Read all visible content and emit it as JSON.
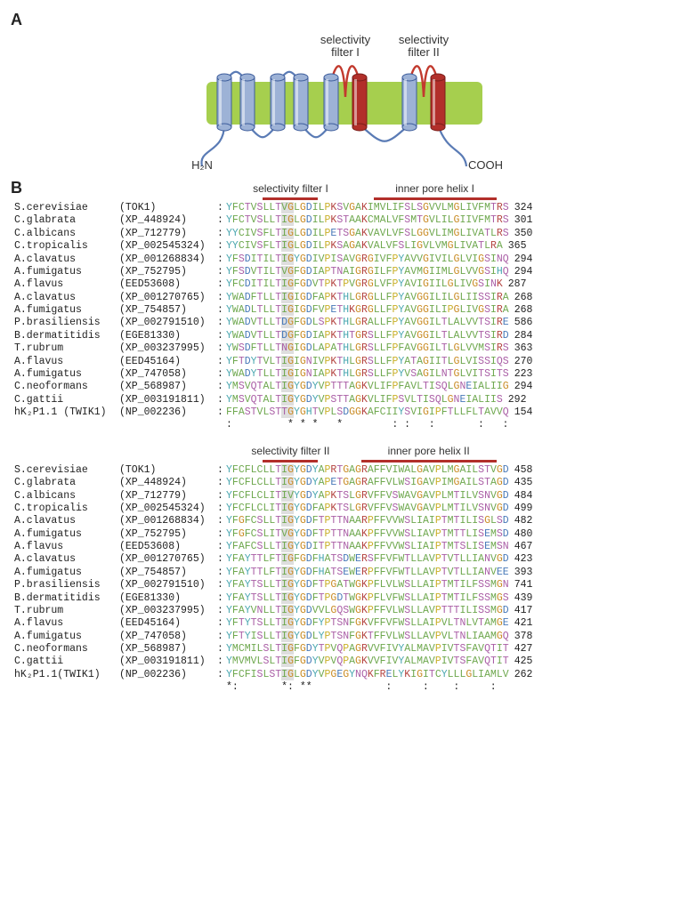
{
  "figure": {
    "panelA_label": "A",
    "panelB_label": "B",
    "diagram": {
      "sf1_label": "selectivity\nfilter I",
      "sf2_label": "selectivity\nfilter II",
      "n_term": "H₂N",
      "c_term": "COOH",
      "membrane_color": "#a6cf4e",
      "sf_loop_color": "#c23a2e",
      "loop_color": "#5a7bb5",
      "helix_fill": "#9db2d6",
      "helix_stroke": "#3c5c9b",
      "filter_helix_fill": "#b22f2a",
      "label_color": "#333333"
    },
    "alignment": {
      "region_bar_color": "#b22f2a",
      "highlight_col_color": "rgba(160,160,160,0.35)",
      "colors": {
        "A": "#6fa84f",
        "I": "#6fa84f",
        "L": "#6fa84f",
        "M": "#6fa84f",
        "F": "#6fa84f",
        "W": "#6fa84f",
        "V": "#6fa84f",
        "C": "#6fa84f",
        "K": "#b44440",
        "R": "#b44440",
        "E": "#4879b8",
        "D": "#4879b8",
        "N": "#aa5fa6",
        "Q": "#aa5fa6",
        "S": "#aa5fa6",
        "T": "#aa5fa6",
        "G": "#c98b24",
        "P": "#c9b029",
        "H": "#4aa7b0",
        "Y": "#4aa7b0"
      },
      "block1": {
        "regions": [
          {
            "label": "selectivity filter I",
            "start": 6,
            "end": 14
          },
          {
            "label": "inner pore helix I",
            "start": 24,
            "end": 43
          }
        ],
        "highlight": {
          "start": 9,
          "end": 10
        },
        "rows": [
          {
            "species": "S.cerevisiae",
            "acc": "(TOK1)",
            "seq": "YFCTVSLLTVGLGDILPKSVGAKIMVLIFSLSGVVLMGLIVFMTRS",
            "pos": 324
          },
          {
            "species": "C.glabrata",
            "acc": "(XP_448924)",
            "seq": "YFCTVSLLTIGLGDILPKSTAAKCMALVFSMTGVLILGIIVFMTRS",
            "pos": 301
          },
          {
            "species": "C.albicans",
            "acc": "(XP_712779)",
            "seq": "YYCIVSFLTIGLGDILPETSGAKVAVLVFSLGGVLIMGLIVATLRS",
            "pos": 350
          },
          {
            "species": "C.tropicalis",
            "acc": "(XP_002545324)",
            "seq": "YYCIVSFLTIGLGDILPKSAGAKVALVFSLIGVLVMGLIVATLRA",
            "pos": 365
          },
          {
            "species": "A.clavatus",
            "acc": "(XP_001268834)",
            "seq": "YFSDITILTIGYGDIVPISAVGRGIVFPYAVVGIVILGLVIGSINQ",
            "pos": 294
          },
          {
            "species": "A.fumigatus",
            "acc": "(XP_752795)",
            "seq": "YFSDVTILTVGFGDIAPTNAIGRGILFPYAVMGIIMLGLVVGSIHQ",
            "pos": 294
          },
          {
            "species": "A.flavus",
            "acc": "(EED53608)",
            "seq": "YFCDITILTIGFGDVTPKTPVGRGLVFPYAVIGIILGLIVGSINK",
            "pos": 287
          },
          {
            "species": "A.clavatus",
            "acc": "(XP_001270765)",
            "seq": "YWADFTLLTIGIGDFAPKTHLGRGLLFPYAVGGILILGLIISSIRA",
            "pos": 268
          },
          {
            "species": "A.fumigatus",
            "acc": "(XP_754857)",
            "seq": "YWADLTLLTIGIGDFVPETHKGRGLLFPYAVGGILIPGLIVGSIRA",
            "pos": 268
          },
          {
            "species": "P.brasiliensis",
            "acc": "(XP_002791510)",
            "seq": "YWADVTLLTDGFGDLSPKTHLGRALLFPYAVGGILTLALVVTSIRE",
            "pos": 586
          },
          {
            "species": "B.dermatitidis",
            "acc": "(EGE81330)",
            "seq": "YWADVTLLTDGFGDIAPKTHTGRSLLFPYAVGGILTLALVVTSIRD",
            "pos": 284
          },
          {
            "species": "T.rubrum",
            "acc": "(XP_003237995)",
            "seq": "YWSDFTLLTNGIGDLAPATHLGRSLLFPFAVGGILTLGLVVMSIRS",
            "pos": 363
          },
          {
            "species": "A.flavus",
            "acc": "(EED45164)",
            "seq": "YFTDYTVLTIGIGNIVPKTHLGRSLLFPYATAGIITLGLVISSIQS",
            "pos": 270
          },
          {
            "species": "A.fumigatus",
            "acc": "(XP_747058)",
            "seq": "YWADYTLLTIGIGNIAPKTHLGRSLLFPYVSAGILNTGLVITSITS",
            "pos": 223
          },
          {
            "species": "C.neoformans",
            "acc": "(XP_568987)",
            "seq": "YMSVQTALTIGYGDYVPTTTAGKVLIFPFAVLTISQLGNEIALIIG",
            "pos": 294
          },
          {
            "species": "C.gattii",
            "acc": "(XP_003191811)",
            "seq": "YMSVQTALTIGYGDYVPSTTAGKVLIFPSVLTISQLGNEIALIIS",
            "pos": 292
          },
          {
            "species": "hK₂P1.1 (TWIK1)",
            "acc": "(NP_002236)",
            "seq": "FFASTVLSTTGYGHTVPLSDGGKAFCIIYSVIGIPFTLLFLTAVVQ",
            "pos": 154
          }
        ],
        "conservation": ":         * * *   *        : :   :       :   :"
      },
      "block2": {
        "regions": [
          {
            "label": "selectivity filter II",
            "start": 6,
            "end": 14
          },
          {
            "label": "inner pore helix II",
            "start": 22,
            "end": 43
          }
        ],
        "highlight": {
          "start": 9,
          "end": 10
        },
        "rows": [
          {
            "species": "S.cerevisiae",
            "acc": "(TOK1)",
            "seq": "YFCFLCLLTIGYGDYAPRTGAGRAFFVIWALGAVPLMGAILSTVGD",
            "pos": 458
          },
          {
            "species": "C.glabrata",
            "acc": "(XP_448924)",
            "seq": "YFCFLCLLTIGYGDYAPETGAGRAFFVLWSIGAVPIMGAILSTAGD",
            "pos": 435
          },
          {
            "species": "C.albicans",
            "acc": "(XP_712779)",
            "seq": "YFCFLCLITIVYGDYAPKTSLGRVFFVSWAVGAVPLMTILVSNVGD",
            "pos": 484
          },
          {
            "species": "C.tropicalis",
            "acc": "(XP_002545324)",
            "seq": "YFCFLCLITIGYGDFAPKTSLGRVFFVSWAVGAVPLMTILVSNVGD",
            "pos": 499
          },
          {
            "species": "A.clavatus",
            "acc": "(XP_001268834)",
            "seq": "YFGFCSLLTIGYGDFTPTTNAARPFFVVWSLIAIPTMTILISGLSD",
            "pos": 482
          },
          {
            "species": "A.fumigatus",
            "acc": "(XP_752795)",
            "seq": "YFGFCSLITVGYGDFTPTTNAAKPFFVVWSLIAVPTMTTLISEMSD",
            "pos": 480
          },
          {
            "species": "A.flavus",
            "acc": "(EED53608)",
            "seq": "YFAFCSLLTIGYGDITPTTNAAKPFFVVWSLIAIPTMTSLISEMSN",
            "pos": 467
          },
          {
            "species": "A.clavatus",
            "acc": "(XP_001270765)",
            "seq": "YFAYTTLFTIGFGDFHATSDWERSFFVFWTLLAVPTVTLLIANVGD",
            "pos": 423
          },
          {
            "species": "A.fumigatus",
            "acc": "(XP_754857)",
            "seq": "YFAYTTLFTIGYGDFHATSEWERPFFVFWTLLAVPTVTLLIANVEE",
            "pos": 393
          },
          {
            "species": "P.brasiliensis",
            "acc": "(XP_002791510)",
            "seq": "YFAYTSLLTIGYGDFTPGATWGKPFLVLWSLLAIPTMTILFSSMGN",
            "pos": 741
          },
          {
            "species": "B.dermatitidis",
            "acc": "(EGE81330)",
            "seq": "YFAYTSLLTIGYGDFTPGDTWGKPFLVFWSLLAIPTMTILFSSMGS",
            "pos": 439
          },
          {
            "species": "T.rubrum",
            "acc": "(XP_003237995)",
            "seq": "YFAYVNLLTIGYGDVVLGQSWGKPFFVLWSLLAVPTTTILISSMGD",
            "pos": 417
          },
          {
            "species": "A.flavus",
            "acc": "(EED45164)",
            "seq": "YFTYTSLLTIGYGDFYPTSNFGKVFFVFWSLLAIPVLTNLVTAMGE",
            "pos": 421
          },
          {
            "species": "A.fumigatus",
            "acc": "(XP_747058)",
            "seq": "YFTYISLLTIGYGDLYPTSNFGKTFFVLWSLLAVPVLTNLIAAMGQ",
            "pos": 378
          },
          {
            "species": "C.neoformans",
            "acc": "(XP_568987)",
            "seq": "YMCMILSLTIGFGDYTPVQPAGRVVFIVYALMAVPIVTSFAVQTIT",
            "pos": 427
          },
          {
            "species": "C.gattii",
            "acc": "(XP_003191811)",
            "seq": "YMVMVLSLTIGFGDYVPVQPAGKVVFIVYALMAVPIVTSFAVQTIT",
            "pos": 425
          },
          {
            "species": "hK₂P1.1(TWIK1)",
            "acc": "(NP_002236)",
            "seq": "YFCFISLSTIGLGDYVPGEGYNQKFRELYKIGITCYLLLGLIAMLV",
            "pos": 262
          }
        ],
        "conservation": "*:       *: **            :     :    :     :  "
      }
    }
  }
}
